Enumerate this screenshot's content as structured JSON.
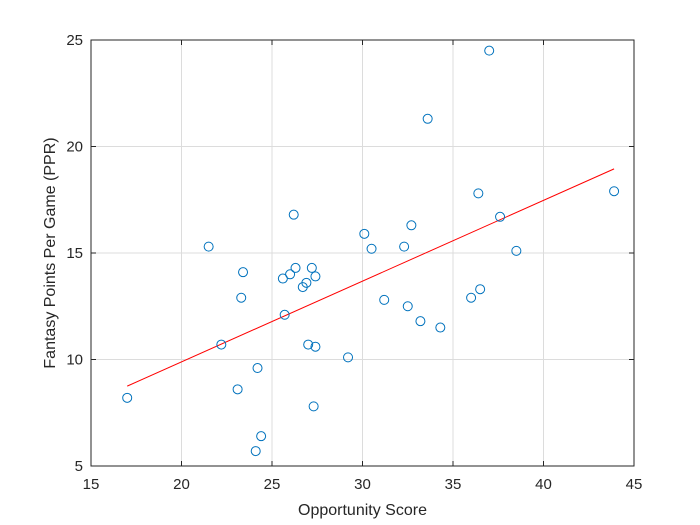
{
  "chart_data": {
    "type": "scatter",
    "xlabel": "Opportunity Score",
    "ylabel": "Fantasy Points Per Game (PPR)",
    "xlim": [
      15,
      45
    ],
    "ylim": [
      5,
      25
    ],
    "xticks": [
      15,
      20,
      25,
      30,
      35,
      40,
      45
    ],
    "yticks": [
      5,
      10,
      15,
      20,
      25
    ],
    "grid": true,
    "colors": {
      "points": "#0072BD",
      "fit_line": "#FF0000",
      "grid": "#dcdcdc",
      "axis": "#262626"
    },
    "points": [
      {
        "x": 17.0,
        "y": 8.2
      },
      {
        "x": 21.5,
        "y": 15.3
      },
      {
        "x": 22.2,
        "y": 10.7
      },
      {
        "x": 23.1,
        "y": 8.6
      },
      {
        "x": 23.3,
        "y": 12.9
      },
      {
        "x": 23.4,
        "y": 14.1
      },
      {
        "x": 24.1,
        "y": 5.7
      },
      {
        "x": 24.2,
        "y": 9.6
      },
      {
        "x": 24.4,
        "y": 6.4
      },
      {
        "x": 25.6,
        "y": 13.8
      },
      {
        "x": 25.7,
        "y": 12.1
      },
      {
        "x": 26.0,
        "y": 14.0
      },
      {
        "x": 26.2,
        "y": 16.8
      },
      {
        "x": 26.3,
        "y": 14.3
      },
      {
        "x": 26.7,
        "y": 13.4
      },
      {
        "x": 26.9,
        "y": 13.6
      },
      {
        "x": 27.0,
        "y": 10.7
      },
      {
        "x": 27.2,
        "y": 14.3
      },
      {
        "x": 27.3,
        "y": 7.8
      },
      {
        "x": 27.4,
        "y": 10.6
      },
      {
        "x": 27.4,
        "y": 13.9
      },
      {
        "x": 29.2,
        "y": 10.1
      },
      {
        "x": 30.1,
        "y": 15.9
      },
      {
        "x": 30.5,
        "y": 15.2
      },
      {
        "x": 31.2,
        "y": 12.8
      },
      {
        "x": 32.3,
        "y": 15.3
      },
      {
        "x": 32.5,
        "y": 12.5
      },
      {
        "x": 32.7,
        "y": 16.3
      },
      {
        "x": 33.2,
        "y": 11.8
      },
      {
        "x": 33.6,
        "y": 21.3
      },
      {
        "x": 34.3,
        "y": 11.5
      },
      {
        "x": 36.0,
        "y": 12.9
      },
      {
        "x": 36.4,
        "y": 17.8
      },
      {
        "x": 36.5,
        "y": 13.3
      },
      {
        "x": 37.0,
        "y": 24.5
      },
      {
        "x": 37.6,
        "y": 16.7
      },
      {
        "x": 38.5,
        "y": 15.1
      },
      {
        "x": 43.9,
        "y": 17.9
      }
    ],
    "fit_line": {
      "x": [
        17.0,
        43.9
      ],
      "y": [
        8.75,
        18.95
      ]
    }
  }
}
